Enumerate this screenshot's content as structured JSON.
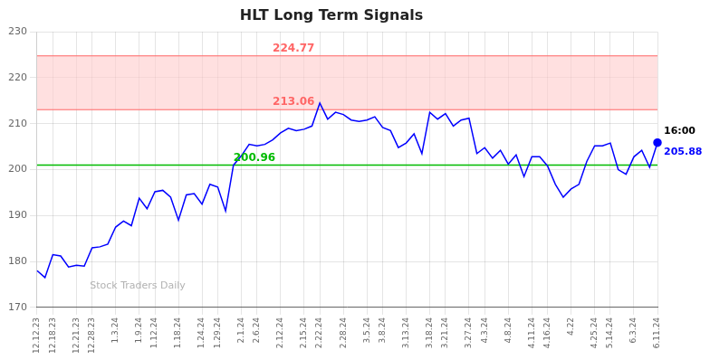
{
  "chart_data": {
    "type": "line",
    "title": "HLT Long Term Signals",
    "categories": [
      "12.12.23",
      null,
      "12.18.23",
      null,
      null,
      "12.21.23",
      null,
      "12.28.23",
      null,
      null,
      "1.3.24",
      null,
      null,
      "1.9.24",
      null,
      "1.12.24",
      null,
      null,
      "1.18.24",
      null,
      null,
      "1.24.24",
      null,
      "1.29.24",
      null,
      null,
      "2.1.24",
      null,
      "2.6.24",
      null,
      null,
      "2.12.24",
      null,
      null,
      "2.15.24",
      null,
      "2.22.24",
      null,
      null,
      "2.28.24",
      null,
      null,
      "3.5.24",
      null,
      "3.8.24",
      null,
      null,
      "3.13.24",
      null,
      null,
      "3.18.24",
      null,
      "3.21.24",
      null,
      null,
      "3.27.24",
      null,
      "4.3.24",
      null,
      null,
      "4.8.24",
      null,
      null,
      "4.11.24",
      null,
      "4.16.24",
      null,
      null,
      "4.22",
      null,
      null,
      "4.25.24",
      null,
      "5.14.24",
      null,
      null,
      "6.3.24",
      null,
      null,
      "6.11.24"
    ],
    "values": [
      178.0,
      176.5,
      181.5,
      181.2,
      178.8,
      179.2,
      179.0,
      183.0,
      183.2,
      183.8,
      187.5,
      188.8,
      187.8,
      193.8,
      191.5,
      195.2,
      195.5,
      194.0,
      189.0,
      194.5,
      194.8,
      192.5,
      196.8,
      196.2,
      191.0,
      200.96,
      203.0,
      205.5,
      205.2,
      205.5,
      206.5,
      208.0,
      209.0,
      208.5,
      208.8,
      209.5,
      214.5,
      211.0,
      212.5,
      212.0,
      210.8,
      210.5,
      210.8,
      211.5,
      209.2,
      208.5,
      204.8,
      205.8,
      207.8,
      203.5,
      212.5,
      211.0,
      212.2,
      209.5,
      210.8,
      211.2,
      203.5,
      204.8,
      202.5,
      204.2,
      201.2,
      203.2,
      198.5,
      202.8,
      202.8,
      200.8,
      196.8,
      194.0,
      195.8,
      196.8,
      201.8,
      205.2,
      205.2,
      205.8,
      200.0,
      199.0,
      202.8,
      204.2,
      200.5,
      205.88
    ],
    "color": "blue",
    "marker": "circle",
    "ylim": [
      170,
      230
    ],
    "yticks": [
      170,
      180,
      190,
      200,
      210,
      220,
      230
    ],
    "grid": true,
    "bands": [
      {
        "from": 213.06,
        "to": 224.77,
        "color": "#ffcccc",
        "edge_color": "#ff6666"
      }
    ],
    "reference_lines": [
      {
        "value": 201.01,
        "color": "#00bb00"
      }
    ],
    "annotations": [
      {
        "text": "224.77",
        "x": 30,
        "y": 224.77,
        "color": "#ff6666",
        "align": "above"
      },
      {
        "text": "213.06",
        "x": 30,
        "y": 213.06,
        "color": "#ff6666",
        "align": "above"
      },
      {
        "text": "200.96",
        "x": 25,
        "y": 200.96,
        "color": "#00bb00",
        "align": "above"
      },
      {
        "text": "16:00",
        "x": 79,
        "y": 205.88,
        "color": "black",
        "align": "above"
      },
      {
        "text": "205.88",
        "x": 79,
        "y": 205.88,
        "color": "blue",
        "align": "below"
      }
    ],
    "watermark": "Stock Traders Daily"
  }
}
